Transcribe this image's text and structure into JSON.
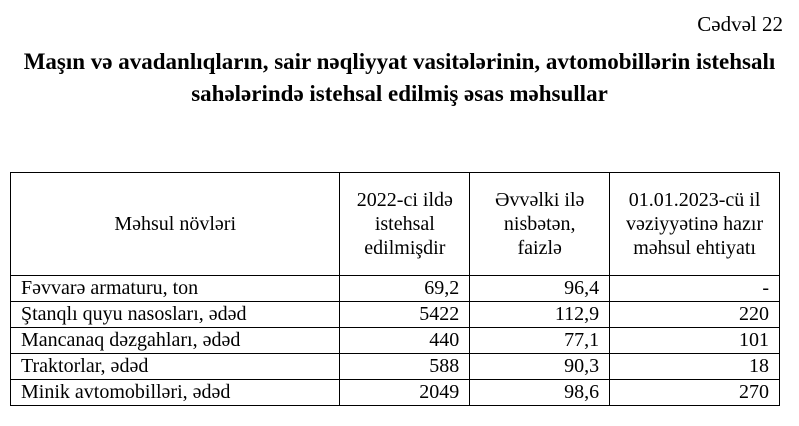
{
  "caption": "Cədvəl 22",
  "title": "Maşın və avadanlıqların, sair nəqliyyat vasitələrinin, avtomobillərin istehsalı sahələrində istehsal edilmiş əsas məhsullar",
  "table": {
    "headers": [
      "Məhsul növləri",
      "2022-ci ildə istehsal edilmişdir",
      "Əvvəlki ilə nisbətən, faizlə",
      "01.01.2023-cü il vəziyyətinə hazır məhsul ehtiyatı"
    ],
    "rows": [
      [
        "Fəvvarə armaturu, ton",
        "69,2",
        "96,4",
        "-"
      ],
      [
        "Ştanqlı quyu nasosları, ədəd",
        "5422",
        "112,9",
        "220"
      ],
      [
        "Mancanaq dəzgahları, ədəd",
        "440",
        "77,1",
        "101"
      ],
      [
        "Traktorlar, ədəd",
        "588",
        "90,3",
        "18"
      ],
      [
        "Minik avtomobilləri, ədəd",
        "2049",
        "98,6",
        "270"
      ]
    ]
  }
}
